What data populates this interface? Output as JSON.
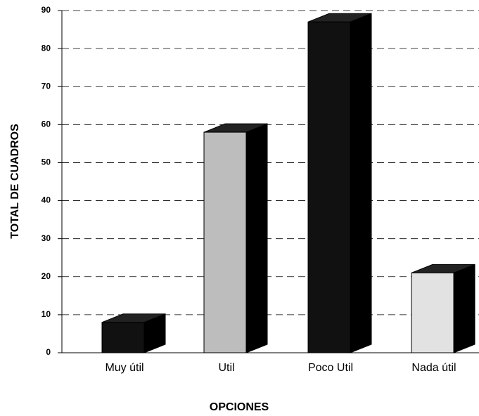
{
  "chart_data": {
    "type": "bar3d",
    "categories": [
      "Muy útil",
      "Util",
      "Poco Util",
      "Nada útil"
    ],
    "values": [
      8,
      58,
      87,
      21
    ],
    "colors": [
      "#111111",
      "#bdbdbd",
      "#111111",
      "#e2e2e2"
    ],
    "xlabel": "OPCIONES",
    "ylabel": "TOTAL DE CUADROS",
    "ylim": [
      0,
      90
    ],
    "yticks": [
      0,
      10,
      20,
      30,
      40,
      50,
      60,
      70,
      80,
      90
    ],
    "grid": true
  }
}
